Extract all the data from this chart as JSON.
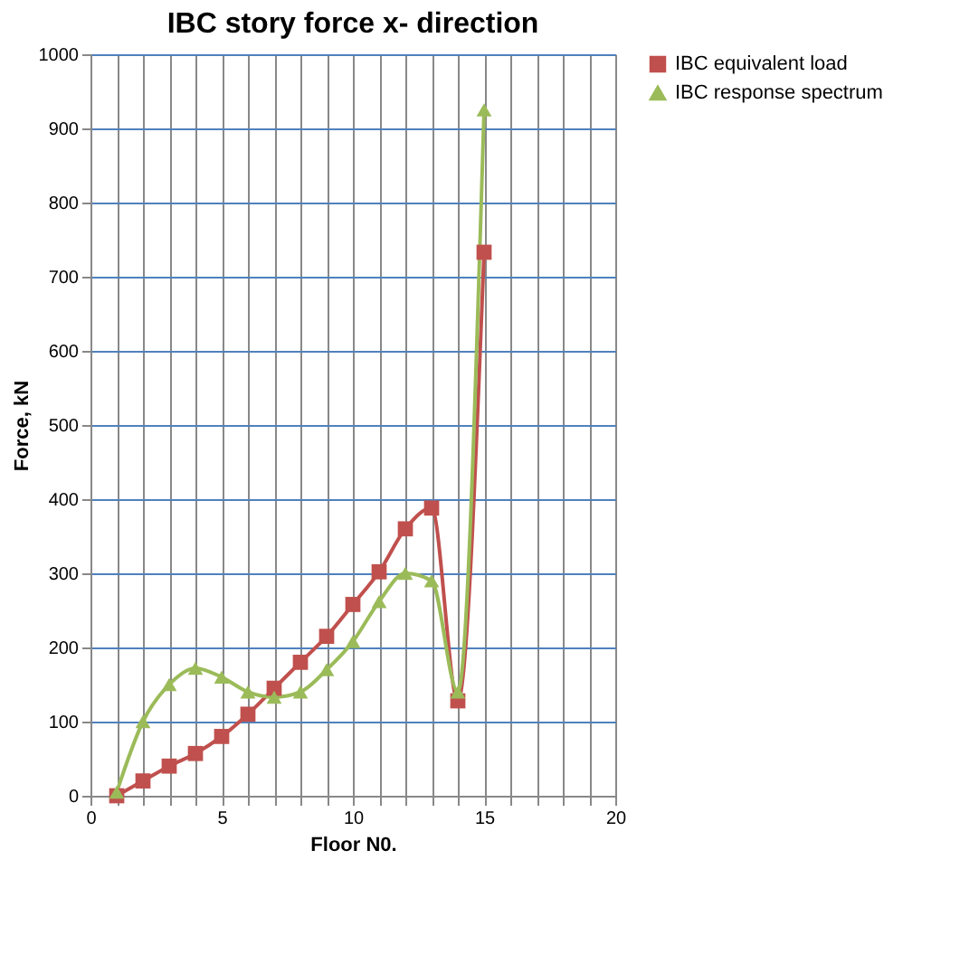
{
  "chart_data": {
    "type": "line",
    "title": "IBC story force x- direction",
    "xlabel": "Floor N0.",
    "ylabel": "Force, kN",
    "x": [
      1,
      2,
      3,
      4,
      5,
      6,
      7,
      8,
      9,
      10,
      11,
      12,
      13,
      14,
      15
    ],
    "series": [
      {
        "name": "IBC equivalent load",
        "color": "#c0504d",
        "marker": "square",
        "values": [
          0,
          20,
          40,
          57,
          80,
          110,
          145,
          180,
          215,
          258,
          302,
          360,
          388,
          128,
          733
        ]
      },
      {
        "name": "IBC response spectrum",
        "color": "#9bbb59",
        "marker": "triangle",
        "values": [
          5,
          100,
          150,
          172,
          160,
          140,
          133,
          140,
          170,
          208,
          262,
          300,
          290,
          140,
          925
        ]
      }
    ],
    "xlim": [
      0,
      20
    ],
    "xticks": [
      0,
      {
        "value": 1,
        "label": null
      },
      {
        "value": 2,
        "label": null
      },
      {
        "value": 3,
        "label": null
      },
      {
        "value": 4,
        "label": null
      },
      5,
      {
        "value": 6,
        "label": null
      },
      {
        "value": 7,
        "label": null
      },
      {
        "value": 8,
        "label": null
      },
      {
        "value": 9,
        "label": null
      },
      10,
      {
        "value": 11,
        "label": null
      },
      {
        "value": 12,
        "label": null
      },
      {
        "value": 13,
        "label": null
      },
      {
        "value": 14,
        "label": null
      },
      15,
      {
        "value": 16,
        "label": null
      },
      {
        "value": 17,
        "label": null
      },
      {
        "value": 18,
        "label": null
      },
      {
        "value": 19,
        "label": null
      },
      20
    ],
    "ylim": [
      0,
      1000
    ],
    "yticks": [
      0,
      100,
      200,
      300,
      400,
      500,
      600,
      700,
      800,
      900,
      1000
    ],
    "grid": true,
    "legend": "right"
  }
}
